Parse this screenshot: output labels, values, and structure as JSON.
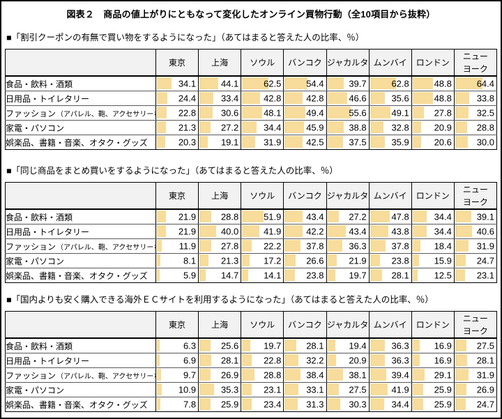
{
  "title": "図表２　商品の値上がりにともなって変化したオンライン買物行動（全10項目から抜粋）",
  "unit": "%",
  "colors": {
    "bar": "#F7DC9B",
    "header_bg": "#F2F2F2",
    "border": "#000000"
  },
  "chart_data": [
    {
      "type": "table",
      "title": "■「割引クーポンの有無で買い物をするようになった」（あてはまると答えた人の比率、％）",
      "categories": [
        "東京",
        "上海",
        "ソウル",
        "バンコク",
        "ジャカルタ",
        "ムンバイ",
        "ロンドン",
        "ニュー\nヨーク"
      ],
      "bar_scale_max": 100,
      "rows": [
        {
          "label": "食品・飲料・酒類",
          "values": [
            34.1,
            44.1,
            62.5,
            54.4,
            39.7,
            62.8,
            48.8,
            64.4
          ]
        },
        {
          "label": "日用品・トイレタリー",
          "values": [
            24.4,
            33.4,
            42.8,
            42.8,
            46.6,
            35.6,
            48.8,
            33.8
          ]
        },
        {
          "label": "ファッション",
          "label_sub": "（アパレル、鞄、アクセサリーなど）",
          "values": [
            22.8,
            30.6,
            48.1,
            49.4,
            55.6,
            49.1,
            27.8,
            32.5
          ]
        },
        {
          "label": "家電・パソコン",
          "values": [
            21.3,
            27.2,
            34.4,
            45.9,
            38.8,
            32.8,
            20.9,
            28.8
          ]
        },
        {
          "label": "娯楽品、書籍・音楽、オタク・グッズ",
          "values": [
            20.3,
            19.1,
            31.9,
            42.5,
            37.5,
            35.9,
            20.6,
            30.0
          ]
        }
      ]
    },
    {
      "type": "table",
      "title": "■「同じ商品をまとめ買いをするようになった」（あてはまると答えた人の比率、％）",
      "categories": [
        "東京",
        "上海",
        "ソウル",
        "バンコク",
        "ジャカルタ",
        "ムンバイ",
        "ロンドン",
        "ニュー\nヨーク"
      ],
      "bar_scale_max": 100,
      "rows": [
        {
          "label": "食品・飲料・酒類",
          "values": [
            21.9,
            28.8,
            51.9,
            43.4,
            27.2,
            47.8,
            34.4,
            39.1
          ]
        },
        {
          "label": "日用品・トイレタリー",
          "values": [
            21.9,
            40.0,
            41.9,
            42.2,
            43.4,
            43.8,
            34.4,
            40.6
          ]
        },
        {
          "label": "ファッション",
          "label_sub": "（アパレル、鞄、アクセサリーなど）",
          "values": [
            11.9,
            27.8,
            22.2,
            37.8,
            36.3,
            37.8,
            18.4,
            31.9
          ]
        },
        {
          "label": "家電・パソコン",
          "values": [
            8.1,
            21.3,
            17.2,
            26.6,
            21.9,
            23.8,
            15.9,
            24.7
          ]
        },
        {
          "label": "娯楽品、書籍・音楽、オタク・グッズ",
          "values": [
            5.9,
            14.7,
            14.1,
            23.8,
            19.7,
            28.1,
            12.5,
            23.1
          ]
        }
      ]
    },
    {
      "type": "table",
      "title": "■「国内よりも安く購入できる海外ＥＣサイトを利用するようになった」（あてはまると答えた人の比率、％）",
      "categories": [
        "東京",
        "上海",
        "ソウル",
        "バンコク",
        "ジャカルタ",
        "ムンバイ",
        "ロンドン",
        "ニュー\nヨーク"
      ],
      "bar_scale_max": 100,
      "rows": [
        {
          "label": "食品・飲料・酒類",
          "values": [
            6.3,
            25.6,
            19.7,
            28.1,
            19.4,
            36.3,
            16.9,
            27.5
          ]
        },
        {
          "label": "日用品・トイレタリー",
          "values": [
            6.9,
            28.1,
            22.8,
            32.2,
            20.9,
            36.3,
            16.9,
            28.1
          ]
        },
        {
          "label": "ファッション",
          "label_sub": "（アパレル、鞄、アクセサリーなど）",
          "values": [
            9.7,
            26.9,
            28.8,
            38.4,
            38.1,
            39.4,
            29.1,
            31.9
          ]
        },
        {
          "label": "家電・パソコン",
          "values": [
            10.9,
            35.3,
            23.1,
            33.1,
            27.5,
            41.9,
            25.9,
            26.9
          ]
        },
        {
          "label": "娯楽品、書籍・音楽、オタク・グッズ",
          "values": [
            7.8,
            25.9,
            23.4,
            31.3,
            30.3,
            34.4,
            25.9,
            24.7
          ]
        }
      ]
    }
  ]
}
